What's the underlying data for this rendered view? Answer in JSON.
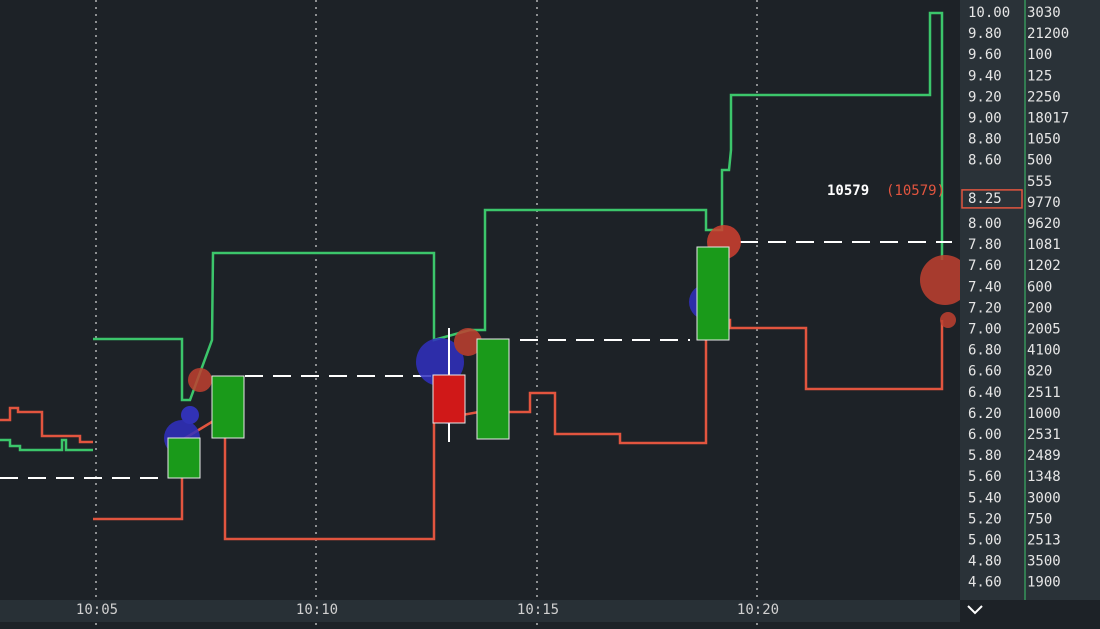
{
  "price_ladder": {
    "rows": [
      {
        "price": "10.00",
        "volume": 3030
      },
      {
        "price": "9.80",
        "volume": 21200
      },
      {
        "price": "9.60",
        "volume": 100
      },
      {
        "price": "9.40",
        "volume": 125
      },
      {
        "price": "9.20",
        "volume": 2250
      },
      {
        "price": "9.00",
        "volume": 18017
      },
      {
        "price": "8.80",
        "volume": 1050
      },
      {
        "price": "8.60",
        "volume": 500
      },
      {
        "price": null,
        "volume": 555
      },
      {
        "price": "8.25",
        "volume": 9770
      },
      {
        "price": "8.00",
        "volume": 9620
      },
      {
        "price": "7.80",
        "volume": 1081
      },
      {
        "price": "7.60",
        "volume": 1202
      },
      {
        "price": "7.40",
        "volume": 600
      },
      {
        "price": "7.20",
        "volume": 200
      },
      {
        "price": "7.00",
        "volume": 2005
      },
      {
        "price": "6.80",
        "volume": 4100
      },
      {
        "price": "6.60",
        "volume": 820
      },
      {
        "price": "6.40",
        "volume": 2511
      },
      {
        "price": "6.20",
        "volume": 1000
      },
      {
        "price": "6.00",
        "volume": 2531
      },
      {
        "price": "5.80",
        "volume": 2489
      },
      {
        "price": "5.60",
        "volume": 1348
      },
      {
        "price": "5.40",
        "volume": 3000
      },
      {
        "price": "5.20",
        "volume": 750
      },
      {
        "price": "5.00",
        "volume": 2513
      },
      {
        "price": "4.80",
        "volume": 3500
      },
      {
        "price": "4.60",
        "volume": 1900
      }
    ]
  },
  "time_axis": {
    "labels": [
      "10:05",
      "10:10",
      "10:15",
      "10:20"
    ]
  },
  "last_trade": {
    "size": "10579",
    "size_detail": "(10579)"
  }
}
